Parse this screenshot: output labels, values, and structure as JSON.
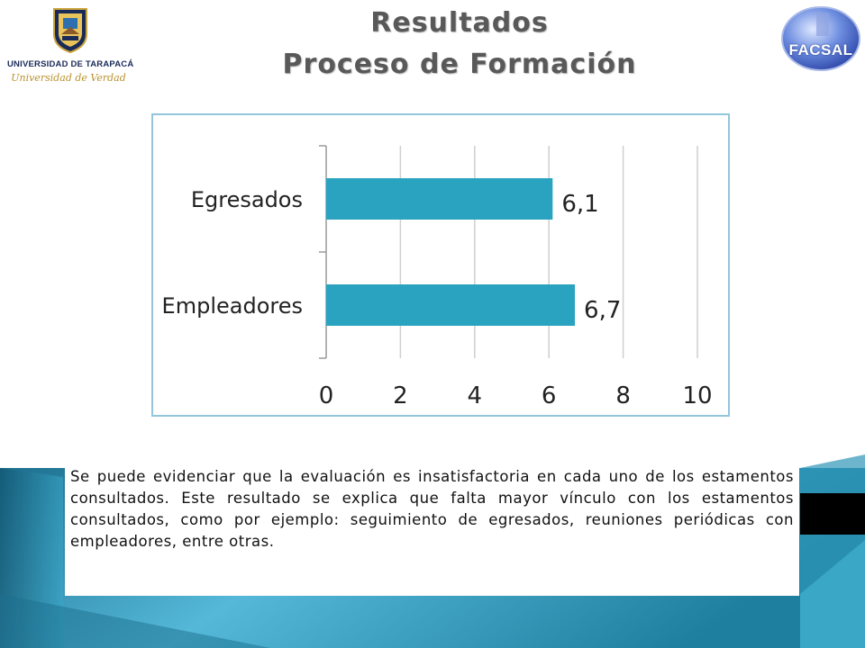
{
  "header": {
    "title_line1": "Resultados",
    "title_line2": "Proceso de Formación"
  },
  "logos": {
    "university_name": "UNIVERSIDAD DE TARAPACÁ",
    "university_motto": "Universidad de Verdad",
    "faculty_logo_text": "FACSAL"
  },
  "chart_data": {
    "type": "bar",
    "orientation": "horizontal",
    "categories": [
      "Egresados",
      "Empleadores"
    ],
    "values": [
      6.1,
      6.7
    ],
    "data_labels": [
      "6,1",
      "6,7"
    ],
    "xticks": [
      "0",
      "2",
      "4",
      "6",
      "8",
      "10"
    ],
    "xlim": [
      0,
      10
    ],
    "grid": true,
    "bar_color": "#2aa3c1",
    "title": "",
    "xlabel": "",
    "ylabel": ""
  },
  "description": {
    "text": "Se puede evidenciar que la evaluación es insatisfactoria en cada uno de los estamentos consultados.  Este resultado se explica que falta mayor vínculo con los estamentos consultados, como por ejemplo: seguimiento de egresados, reuniones periódicas con empleadores, entre otras."
  },
  "colors": {
    "title": "#595959",
    "frame_border": "#93c6da",
    "band_dark": "#1c6f8e",
    "band_light": "#55b8d8"
  }
}
